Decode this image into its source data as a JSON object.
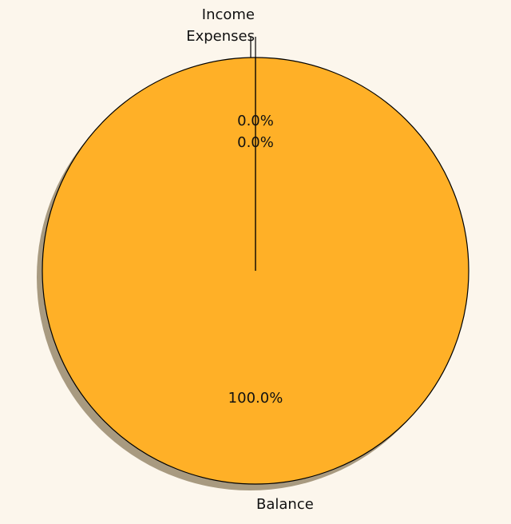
{
  "chart_data": {
    "type": "pie",
    "title": "",
    "categories": [
      "Income",
      "Expenses",
      "Balance"
    ],
    "values": [
      0,
      0,
      100
    ],
    "percent_labels": [
      "0.0%",
      "0.0%",
      "100.0%"
    ],
    "colors": [
      "#e0ddd8",
      "#e0ddd8",
      "#ffb027"
    ],
    "shadow": true,
    "legend": "none"
  },
  "colors": {
    "background": "#fcf6ec",
    "edge": "#000000",
    "shadow": "#a89a80"
  }
}
